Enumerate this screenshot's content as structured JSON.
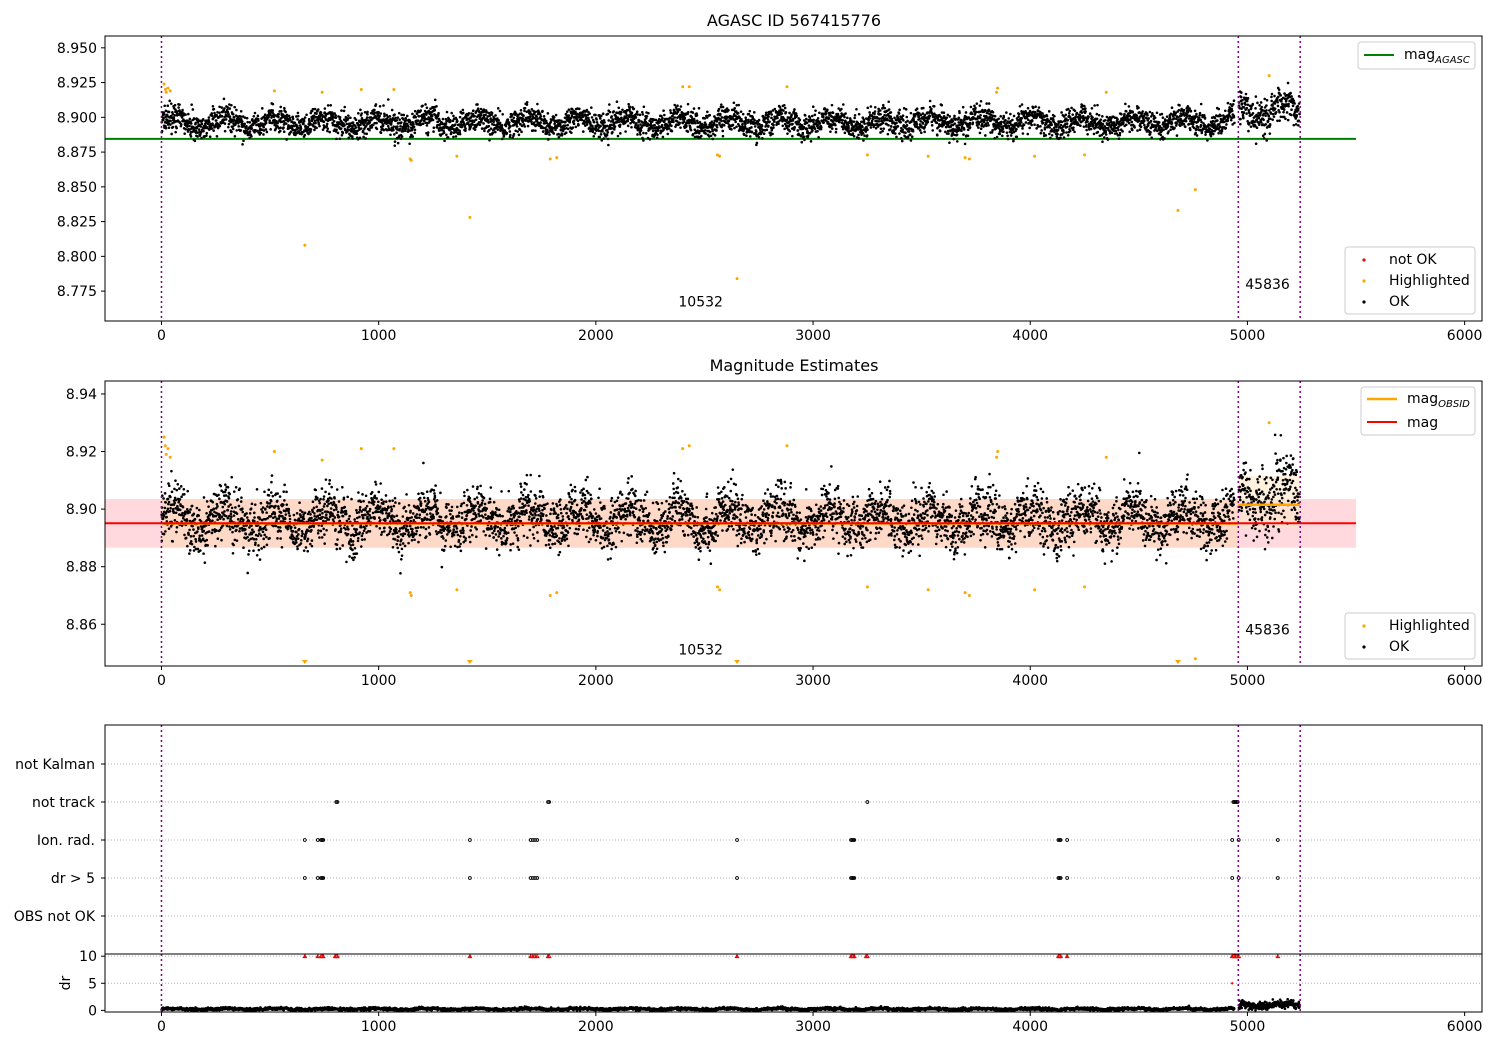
{
  "chart_data": [
    {
      "type": "scatter",
      "title": "AGASC ID 567415776",
      "xlabel": "",
      "ylabel": "",
      "xlim": [
        -260,
        6080
      ],
      "ylim": [
        8.7535,
        8.9585
      ],
      "x_ticks": [
        0,
        1000,
        2000,
        3000,
        4000,
        5000,
        6000
      ],
      "x_tick_labels": [
        "0",
        "1000",
        "2000",
        "3000",
        "4000",
        "5000",
        "6000"
      ],
      "y_ticks": [
        8.775,
        8.8,
        8.825,
        8.85,
        8.875,
        8.9,
        8.925,
        8.95
      ],
      "y_tick_labels": [
        "8.775",
        "8.800",
        "8.825",
        "8.850",
        "8.875",
        "8.900",
        "8.925",
        "8.950"
      ],
      "vlines": [
        0,
        4958,
        5243
      ],
      "annotations": [
        {
          "text": "10532",
          "x": 2380,
          "y": 8.764
        },
        {
          "text": "45836",
          "x": 4990,
          "y": 8.7765
        }
      ],
      "series": [
        {
          "name": "mag",
          "sub": "AGASC",
          "kind": "hline",
          "y": 8.8845,
          "x_range": [
            -260,
            5500
          ],
          "color": "#008000"
        },
        {
          "name": "not OK",
          "kind": "scatter",
          "color": "#ff0000",
          "points": []
        },
        {
          "name": "Highlighted",
          "kind": "scatter",
          "color": "#ffa500",
          "points": [
            [
              12,
              8.924
            ],
            [
              18,
              8.92
            ],
            [
              22,
              8.918
            ],
            [
              30,
              8.921
            ],
            [
              40,
              8.919
            ],
            [
              520,
              8.919
            ],
            [
              660,
              8.808
            ],
            [
              740,
              8.918
            ],
            [
              920,
              8.92
            ],
            [
              1070,
              8.92
            ],
            [
              1145,
              8.87
            ],
            [
              1150,
              8.869
            ],
            [
              1360,
              8.872
            ],
            [
              1420,
              8.828
            ],
            [
              1790,
              8.87
            ],
            [
              1820,
              8.871
            ],
            [
              2400,
              8.922
            ],
            [
              2430,
              8.922
            ],
            [
              2560,
              8.873
            ],
            [
              2570,
              8.872
            ],
            [
              2650,
              8.784
            ],
            [
              2880,
              8.922
            ],
            [
              3250,
              8.873
            ],
            [
              3530,
              8.872
            ],
            [
              3700,
              8.871
            ],
            [
              3720,
              8.87
            ],
            [
              3845,
              8.918
            ],
            [
              3850,
              8.921
            ],
            [
              4020,
              8.872
            ],
            [
              4250,
              8.873
            ],
            [
              4350,
              8.918
            ],
            [
              4680,
              8.833
            ],
            [
              4760,
              8.848
            ],
            [
              5100,
              8.93
            ]
          ]
        },
        {
          "name": "OK",
          "kind": "scatter",
          "color": "#000000",
          "points_description": "dense band",
          "segments": [
            {
              "x_range": [
                0,
                4940
              ],
              "center": 8.8965,
              "spread": 0.0068
            },
            {
              "x_range": [
                4960,
                5240
              ],
              "center": 8.904,
              "spread": 0.009
            }
          ]
        }
      ],
      "legend": [
        {
          "position": "top-right",
          "entries": [
            "mag_AGASC"
          ]
        },
        {
          "position": "bottom-right",
          "entries": [
            "not OK",
            "Highlighted",
            "OK"
          ]
        }
      ]
    },
    {
      "type": "scatter",
      "title": "Magnitude Estimates",
      "xlabel": "",
      "ylabel": "",
      "xlim": [
        -260,
        6080
      ],
      "ylim": [
        8.8455,
        8.9445
      ],
      "x_ticks": [
        0,
        1000,
        2000,
        3000,
        4000,
        5000,
        6000
      ],
      "x_tick_labels": [
        "0",
        "1000",
        "2000",
        "3000",
        "4000",
        "5000",
        "6000"
      ],
      "y_ticks": [
        8.86,
        8.88,
        8.9,
        8.92,
        8.94
      ],
      "y_tick_labels": [
        "8.86",
        "8.88",
        "8.90",
        "8.92",
        "8.94"
      ],
      "vlines": [
        0,
        4958,
        5243
      ],
      "annotations": [
        {
          "text": "10532",
          "x": 2380,
          "y": 8.8495
        },
        {
          "text": "45836",
          "x": 4990,
          "y": 8.8565
        }
      ],
      "bands": [
        {
          "x_range": [
            -260,
            5500
          ],
          "y_range": [
            8.8866,
            8.9035
          ],
          "color": "#ffc0c8"
        },
        {
          "x_range": [
            0,
            4958
          ],
          "y_range": [
            8.8866,
            8.9035
          ],
          "color": "#ffd8b8"
        },
        {
          "x_range": [
            4958,
            5243
          ],
          "y_range": [
            8.8935,
            8.9115
          ],
          "color": "#ffe8c8"
        }
      ],
      "series": [
        {
          "name": "mag",
          "sub": "OBSID",
          "kind": "steps",
          "color": "#ffa500",
          "segments": [
            {
              "x_range": [
                0,
                4958
              ],
              "y": 8.895
            },
            {
              "x_range": [
                4958,
                5243
              ],
              "y": 8.9015
            }
          ]
        },
        {
          "name": "mag",
          "kind": "hline",
          "y": 8.8951,
          "x_range": [
            -260,
            5500
          ],
          "color": "#ff0000"
        },
        {
          "name": "Highlighted",
          "kind": "scatter",
          "color": "#ffa500",
          "points": [
            [
              12,
              8.925
            ],
            [
              18,
              8.922
            ],
            [
              22,
              8.919
            ],
            [
              30,
              8.921
            ],
            [
              40,
              8.918
            ],
            [
              520,
              8.92
            ],
            [
              740,
              8.917
            ],
            [
              920,
              8.921
            ],
            [
              1070,
              8.921
            ],
            [
              1145,
              8.871
            ],
            [
              1150,
              8.87
            ],
            [
              1360,
              8.872
            ],
            [
              1790,
              8.87
            ],
            [
              1820,
              8.871
            ],
            [
              2400,
              8.921
            ],
            [
              2430,
              8.922
            ],
            [
              2560,
              8.873
            ],
            [
              2570,
              8.872
            ],
            [
              2880,
              8.922
            ],
            [
              3250,
              8.873
            ],
            [
              3530,
              8.872
            ],
            [
              3700,
              8.871
            ],
            [
              3720,
              8.87
            ],
            [
              3845,
              8.918
            ],
            [
              3850,
              8.92
            ],
            [
              4020,
              8.872
            ],
            [
              4250,
              8.873
            ],
            [
              4350,
              8.918
            ],
            [
              4760,
              8.848
            ],
            [
              5100,
              8.93
            ]
          ]
        },
        {
          "name": "Highlighted",
          "kind": "below-range-markers",
          "color": "#ffa500",
          "x": [
            660,
            1420,
            2650,
            4680
          ]
        },
        {
          "name": "OK",
          "kind": "scatter",
          "color": "#000000",
          "points_description": "dense band",
          "segments": [
            {
              "x_range": [
                0,
                4940
              ],
              "center": 8.8965,
              "spread": 0.0068
            },
            {
              "x_range": [
                4960,
                5240
              ],
              "center": 8.904,
              "spread": 0.009
            }
          ]
        }
      ],
      "legend": [
        {
          "position": "top-right",
          "entries": [
            "mag_OBSID",
            "mag"
          ]
        },
        {
          "position": "bottom-right",
          "entries": [
            "Highlighted",
            "OK"
          ]
        }
      ]
    },
    {
      "type": "scatter",
      "title": "",
      "xlabel": "",
      "ylabel": "",
      "xlim": [
        -260,
        6080
      ],
      "y_categories": [
        "not Kalman",
        "not track",
        "Ion. rad.",
        "dr > 5",
        "OBS not OK"
      ],
      "vlines": [
        0,
        4958,
        5243
      ],
      "flags": {
        "not Kalman": [],
        "not track": [
          805,
          810,
          1780,
          1785,
          3250,
          4935,
          4940,
          4945,
          4950,
          4955
        ],
        "Ion. rad.": [
          660,
          720,
          735,
          740,
          745,
          1420,
          1700,
          1710,
          1720,
          1730,
          2650,
          3175,
          3180,
          3185,
          3190,
          4130,
          4135,
          4140,
          4170,
          4930,
          4960,
          5140
        ],
        "dr > 5": [
          660,
          720,
          735,
          740,
          745,
          1420,
          1700,
          1710,
          1720,
          1730,
          2650,
          3175,
          3180,
          3185,
          3190,
          4130,
          4135,
          4140,
          4170,
          4930,
          4960,
          5140
        ],
        "OBS not OK": []
      }
    },
    {
      "type": "scatter",
      "title": "",
      "xlabel": "",
      "ylabel": "dr",
      "xlim": [
        -260,
        6080
      ],
      "ylim": [
        -0.3,
        10.4
      ],
      "x_ticks": [
        0,
        1000,
        2000,
        3000,
        4000,
        5000,
        6000
      ],
      "x_tick_labels": [
        "0",
        "1000",
        "2000",
        "3000",
        "4000",
        "5000",
        "6000"
      ],
      "y_ticks": [
        0,
        5,
        10
      ],
      "y_tick_labels": [
        "0",
        "5",
        "10"
      ],
      "vlines": [
        0,
        4958,
        5243
      ],
      "series": [
        {
          "name": "dr clipped",
          "kind": "markers",
          "color": "#ff0000",
          "y": 10,
          "x": [
            660,
            720,
            735,
            740,
            745,
            800,
            805,
            810,
            1420,
            1700,
            1710,
            1720,
            1730,
            1780,
            1785,
            2650,
            3175,
            3180,
            3185,
            3190,
            3245,
            3250,
            4130,
            4135,
            4140,
            4170,
            4930,
            4935,
            4940,
            4945,
            4950,
            4955,
            4960,
            5140
          ]
        },
        {
          "name": "dr outlier",
          "kind": "points",
          "color": "#ff0000",
          "points": [
            [
              4930,
              5
            ]
          ]
        },
        {
          "name": "dr",
          "kind": "scatter",
          "color": "#000000",
          "segments": [
            {
              "x_range": [
                0,
                4940
              ],
              "center": 0.25,
              "spread": 0.18
            },
            {
              "x_range": [
                4960,
                5240
              ],
              "center": 1.0,
              "spread": 0.5
            }
          ]
        }
      ]
    }
  ]
}
